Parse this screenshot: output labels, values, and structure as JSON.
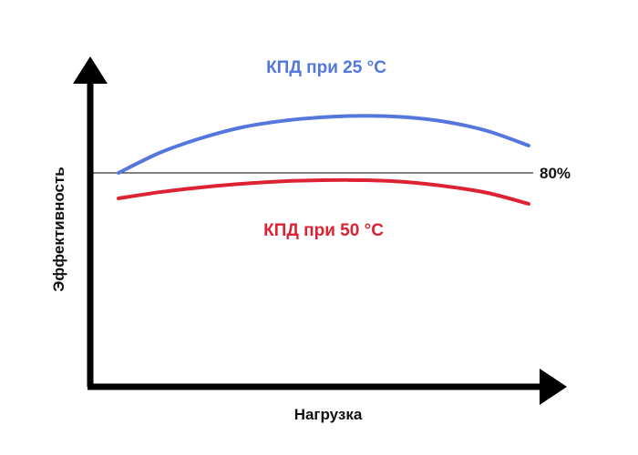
{
  "chart_data": {
    "type": "line",
    "title": "",
    "xlabel": "Нагрузка",
    "ylabel": "Эффективность",
    "grid": false,
    "x": [
      0,
      0.1,
      0.2,
      0.3,
      0.4,
      0.5,
      0.6,
      0.7,
      0.8,
      0.9,
      1.0
    ],
    "series": [
      {
        "name": "КПД при 25 °C",
        "color": "#5577dd",
        "values": [
          80,
          85.5,
          89.5,
          92.5,
          94.3,
          95.3,
          95.7,
          95.3,
          94.0,
          91.5,
          87.5
        ]
      },
      {
        "name": "КПД при 50 °C",
        "color": "#dd2233",
        "values": [
          73,
          74.7,
          76.0,
          77.0,
          77.7,
          78.0,
          78.0,
          77.5,
          76.3,
          74.5,
          71.5
        ]
      }
    ],
    "reference_line": {
      "label": "80%",
      "value": 80,
      "color": "#000000"
    },
    "axis_ticks": false
  }
}
